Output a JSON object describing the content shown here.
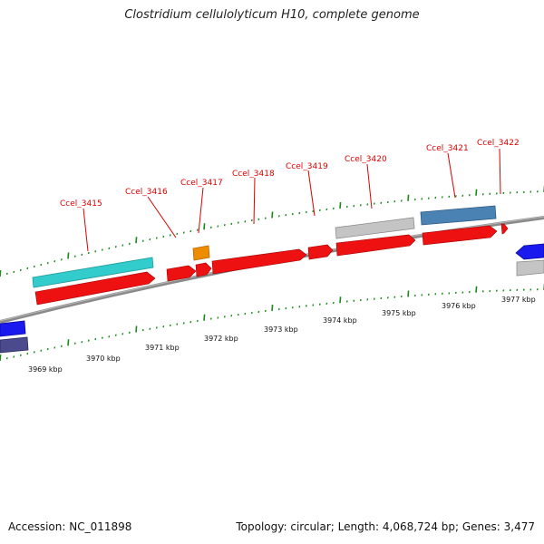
{
  "title": "Clostridium cellulolyticum H10, complete genome",
  "footer": {
    "accession": "Accession: NC_011898",
    "summary": "Topology: circular; Length: 4,068,724 bp; Genes: 3,477"
  },
  "colors": {
    "gene_red": "#ee1111",
    "leader_line": "#dd0000",
    "tick_green": "#1a8a1a",
    "backbone": "#808080",
    "cyan_feature": "#33cccc",
    "grey_feature": "#c4c4c4",
    "steelblue_feature": "#4a82b4",
    "orange_feature": "#ee8c00",
    "blue_feature": "#1a1aee",
    "purple_feature": "#4a4a8c"
  },
  "gene_labels": [
    "Ccel_3415",
    "Ccel_3416",
    "Ccel_3417",
    "Ccel_3418",
    "Ccel_3419",
    "Ccel_3420",
    "Ccel_3421",
    "Ccel_3422"
  ],
  "kbp_labels": [
    "3969 kbp",
    "3970 kbp",
    "3971 kbp",
    "3972 kbp",
    "3973 kbp",
    "3974 kbp",
    "3975 kbp",
    "3976 kbp",
    "3977 kbp"
  ]
}
